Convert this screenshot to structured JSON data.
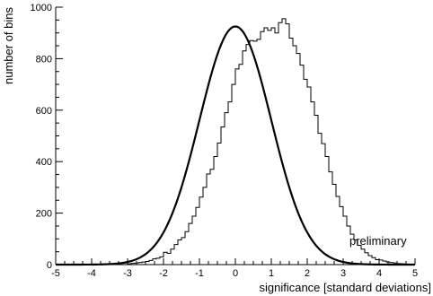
{
  "chart_data": {
    "type": "line",
    "title": "",
    "xlabel": "significance [standard deviations]",
    "ylabel": "number of bins",
    "xlim": [
      -5,
      5
    ],
    "ylim": [
      0,
      1000
    ],
    "x_ticks": [
      -5,
      -4,
      -3,
      -2,
      -1,
      0,
      1,
      2,
      3,
      4,
      5
    ],
    "y_ticks": [
      0,
      200,
      400,
      600,
      800,
      1000
    ],
    "grid": false,
    "annotation": "preliminary",
    "series": [
      {
        "render": "step",
        "bin_edges_start": -5,
        "bin_width": 0.1,
        "counts": [
          0,
          0,
          0,
          0,
          0,
          0,
          0,
          0,
          0,
          0,
          0,
          0,
          1,
          1,
          2,
          2,
          3,
          4,
          5,
          6,
          3,
          5,
          6,
          8,
          10,
          12,
          16,
          22,
          25,
          30,
          48,
          44,
          60,
          78,
          96,
          105,
          128,
          160,
          188,
          222,
          262,
          300,
          352,
          370,
          420,
          472,
          535,
          590,
          632,
          700,
          760,
          778,
          830,
          855,
          870,
          868,
          875,
          905,
          920,
          910,
          920,
          900,
          940,
          955,
          935,
          880,
          850,
          820,
          775,
          720,
          690,
          632,
          580,
          510,
          470,
          420,
          360,
          312,
          265,
          225,
          188,
          150,
          118,
          96,
          75,
          60,
          46,
          35,
          27,
          19,
          18,
          14,
          10,
          8,
          6,
          4,
          3,
          2,
          1,
          1
        ]
      },
      {
        "render": "curve",
        "function": "gaussian",
        "amplitude": 925,
        "mean": 0.0,
        "sigma": 1.0
      }
    ]
  }
}
